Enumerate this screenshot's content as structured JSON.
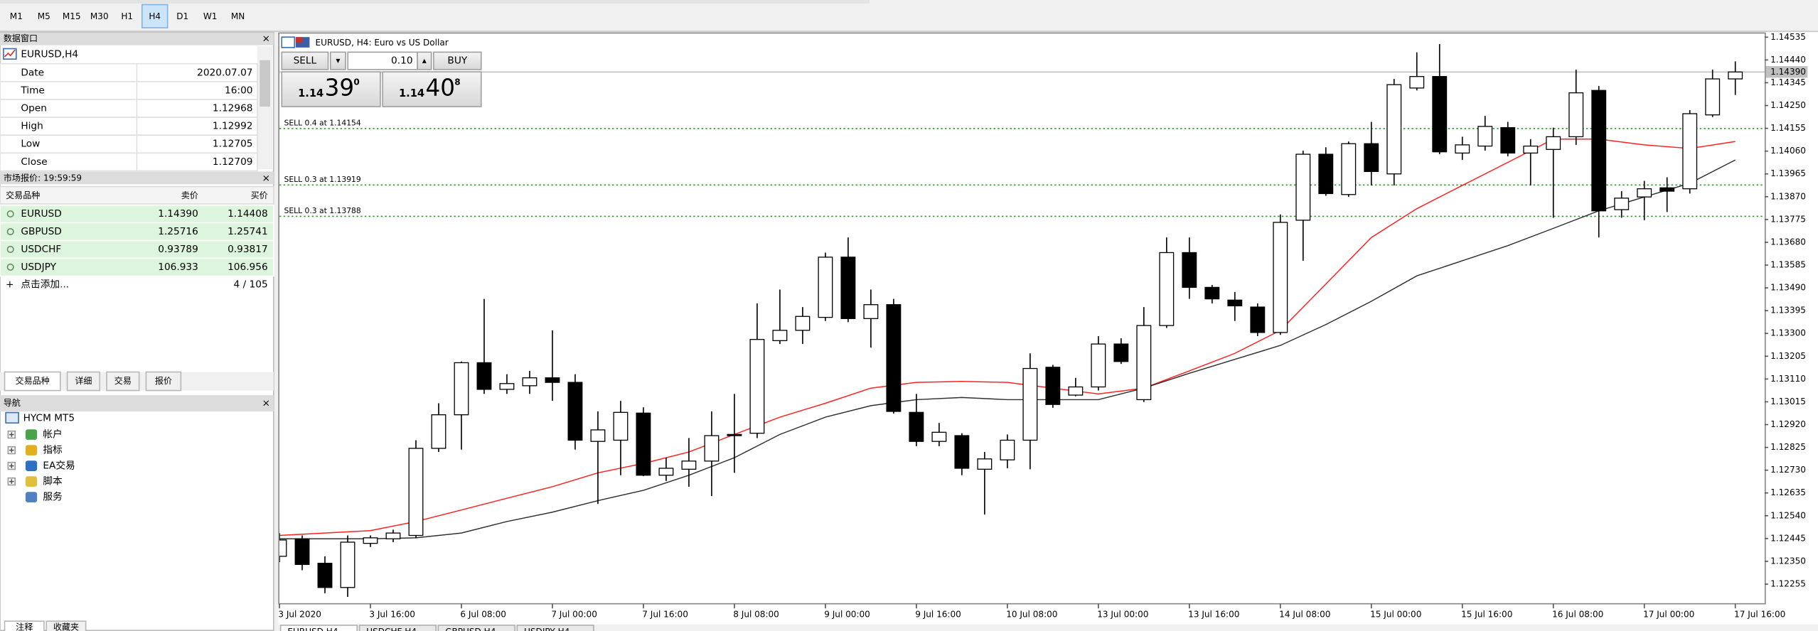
{
  "toolbar": {
    "timeframes": [
      "M1",
      "M5",
      "M15",
      "M30",
      "H1",
      "H4",
      "D1",
      "W1",
      "MN"
    ],
    "active_timeframe": "H4"
  },
  "data_window": {
    "title": "数据窗口",
    "symbol": "EURUSD,H4",
    "rows": [
      [
        "Date",
        "2020.07.07"
      ],
      [
        "Time",
        "16:00"
      ],
      [
        "Open",
        "1.12968"
      ],
      [
        "High",
        "1.12992"
      ],
      [
        "Low",
        "1.12705"
      ],
      [
        "Close",
        "1.12709"
      ]
    ]
  },
  "market_watch": {
    "title": "市场报价: 19:59:59",
    "columns": [
      "交易品种",
      "卖价",
      "买价"
    ],
    "rows": [
      [
        "EURUSD",
        "1.14390",
        "1.14408"
      ],
      [
        "GBPUSD",
        "1.25716",
        "1.25741"
      ],
      [
        "USDCHF",
        "0.93789",
        "0.93817"
      ],
      [
        "USDJPY",
        "106.933",
        "106.956"
      ]
    ],
    "add": "点击添加...",
    "count": "4 / 105",
    "tabs": [
      "交易品种",
      "详细",
      "交易",
      "报价"
    ]
  },
  "navigator": {
    "title": "导航",
    "root": "HYCM MT5",
    "items": [
      "帐户",
      "指标",
      "EA交易",
      "脚本",
      "服务"
    ]
  },
  "bottom_tabs": [
    "注释",
    "收藏夹"
  ],
  "chart_tabs": [
    "EURUSD,H4",
    "USDCHF,H4",
    "GBPUSD,H4",
    "USDJPY,H4"
  ],
  "chart_data": {
    "type": "candlestick",
    "title": "EURUSD, H4:  Euro vs US Dollar",
    "one_click": {
      "sell": "SELL",
      "buy": "BUY",
      "volume": "0.10",
      "bid": [
        "1.14",
        "39",
        "0"
      ],
      "ask": [
        "1.14",
        "40",
        "8"
      ]
    },
    "categories": [
      "3 Jul 2020",
      null,
      null,
      null,
      "3 Jul 16:00",
      null,
      null,
      null,
      "6 Jul 08:00",
      null,
      null,
      null,
      "7 Jul 00:00",
      null,
      null,
      null,
      "7 Jul 16:00",
      null,
      null,
      null,
      "8 Jul 08:00",
      null,
      null,
      null,
      "9 Jul 00:00",
      null,
      null,
      null,
      "9 Jul 16:00",
      null,
      null,
      null,
      "10 Jul 08:00",
      null,
      null,
      null,
      "13 Jul 00:00",
      null,
      null,
      null,
      "13 Jul 16:00",
      null,
      null,
      null,
      "14 Jul 08:00",
      null,
      null,
      null,
      "15 Jul 00:00",
      null,
      null,
      null,
      "15 Jul 16:00",
      null,
      null,
      null,
      "16 Jul 08:00",
      null,
      null,
      null,
      "17 Jul 00:00",
      null,
      null,
      null,
      "17 Jul 16:00"
    ],
    "open": [
      1.12371,
      1.12444,
      1.12342,
      1.12241,
      1.12425,
      1.12444,
      1.12458,
      1.12821,
      1.12961,
      1.13178,
      1.13067,
      1.13082,
      1.13115,
      1.13096,
      1.1285,
      1.12855,
      1.12968,
      1.12709,
      1.12734,
      1.12768,
      1.12879,
      1.12884,
      1.1327,
      1.13313,
      1.13367,
      1.13618,
      1.13362,
      1.1342,
      1.12971,
      1.1285,
      1.12874,
      1.12734,
      1.12773,
      1.12855,
      1.13159,
      1.13043,
      1.13077,
      1.13256,
      1.13024,
      1.13333,
      1.13637,
      1.13492,
      1.13439,
      1.1341,
      1.13304,
      1.13772,
      1.14047,
      1.13879,
      1.14091,
      1.13965,
      1.14323,
      1.14371,
      1.14052,
      1.14081,
      1.14158,
      1.14052,
      1.14067,
      1.1412,
      1.14313,
      1.13816,
      1.13869,
      1.13907,
      1.13903,
      1.14211,
      1.14361
    ],
    "high": [
      1.12468,
      1.12458,
      1.12371,
      1.12458,
      1.12458,
      1.12482,
      1.12855,
      1.13009,
      1.13183,
      1.13444,
      1.1313,
      1.13144,
      1.13313,
      1.1313,
      1.12975,
      1.13019,
      1.12992,
      1.12782,
      1.12864,
      1.12975,
      1.13048,
      1.13425,
      1.13483,
      1.1341,
      1.13637,
      1.137,
      1.13483,
      1.13444,
      1.13048,
      1.12927,
      1.12884,
      1.12806,
      1.12879,
      1.13217,
      1.13169,
      1.13115,
      1.13289,
      1.1328,
      1.1341,
      1.137,
      1.137,
      1.13502,
      1.13473,
      1.13425,
      1.13796,
      1.14062,
      1.14076,
      1.141,
      1.14182,
      1.14361,
      1.14472,
      1.14506,
      1.1412,
      1.14207,
      1.14182,
      1.1411,
      1.14158,
      1.144,
      1.14332,
      1.13893,
      1.13936,
      1.13951,
      1.14231,
      1.144,
      1.14434
    ],
    "low": [
      1.12347,
      1.12313,
      1.12217,
      1.12202,
      1.1241,
      1.1243,
      1.12448,
      1.12806,
      1.12816,
      1.13048,
      1.13048,
      1.13048,
      1.13019,
      1.12816,
      1.12589,
      1.12709,
      1.12705,
      1.12685,
      1.12661,
      1.12622,
      1.12719,
      1.12864,
      1.13256,
      1.13256,
      1.13352,
      1.13347,
      1.13241,
      1.12966,
      1.1283,
      1.1283,
      1.12709,
      1.12545,
      1.12738,
      1.12734,
      1.1299,
      1.13038,
      1.13062,
      1.13173,
      1.13014,
      1.13323,
      1.13444,
      1.13425,
      1.13352,
      1.13289,
      1.13294,
      1.13603,
      1.13874,
      1.13869,
      1.13917,
      1.13917,
      1.14313,
      1.14047,
      1.14023,
      1.14062,
      1.14038,
      1.13917,
      1.13782,
      1.14086,
      1.137,
      1.13782,
      1.13772,
      1.13806,
      1.13883,
      1.14202,
      1.14294
    ],
    "close": [
      1.12439,
      1.12337,
      1.12241,
      1.1243,
      1.12448,
      1.12468,
      1.12821,
      1.12961,
      1.13178,
      1.13067,
      1.13091,
      1.13115,
      1.13096,
      1.12855,
      1.12898,
      1.12971,
      1.12709,
      1.12738,
      1.12768,
      1.12874,
      1.12874,
      1.13275,
      1.13313,
      1.13371,
      1.13618,
      1.13362,
      1.1342,
      1.12975,
      1.1285,
      1.12888,
      1.12738,
      1.12777,
      1.12855,
      1.13154,
      1.13004,
      1.13077,
      1.13256,
      1.13183,
      1.13333,
      1.13637,
      1.13492,
      1.13444,
      1.13415,
      1.13304,
      1.13763,
      1.14047,
      1.13883,
      1.14091,
      1.13975,
      1.14337,
      1.14371,
      1.14057,
      1.14086,
      1.14163,
      1.14052,
      1.14081,
      1.1412,
      1.14303,
      1.13811,
      1.13864,
      1.13903,
      1.13893,
      1.14216,
      1.14361,
      1.1439
    ],
    "up_color": "#ffffff",
    "down_color": "#000000",
    "wick_color": "#000000",
    "moving_averages": [
      {
        "color": "#ff2020",
        "x": [
          0,
          2,
          4,
          6,
          8,
          10,
          12,
          14,
          16,
          18,
          20,
          22,
          24,
          26,
          28,
          30,
          32,
          34,
          36,
          38,
          40,
          42,
          44,
          46,
          48,
          50,
          52,
          54,
          56,
          58,
          60,
          62,
          64
        ],
        "values": [
          1.12458,
          1.12468,
          1.12478,
          1.12516,
          1.12564,
          1.12613,
          1.12661,
          1.12719,
          1.12758,
          1.12806,
          1.12879,
          1.12951,
          1.13009,
          1.13072,
          1.13096,
          1.131,
          1.13096,
          1.13072,
          1.13048,
          1.13072,
          1.13144,
          1.13217,
          1.13313,
          1.13506,
          1.137,
          1.1382,
          1.13917,
          1.14013,
          1.1411,
          1.1411,
          1.14086,
          1.14071,
          1.141
        ]
      },
      {
        "color": "#303030",
        "x": [
          0,
          2,
          4,
          6,
          8,
          10,
          12,
          14,
          16,
          18,
          20,
          22,
          24,
          26,
          28,
          30,
          32,
          34,
          36,
          38,
          40,
          42,
          44,
          46,
          48,
          50,
          52,
          54,
          56,
          58,
          60,
          62,
          64
        ],
        "values": [
          1.12444,
          1.12444,
          1.12444,
          1.12448,
          1.12468,
          1.12516,
          1.12555,
          1.12603,
          1.12646,
          1.12709,
          1.12782,
          1.12879,
          1.12951,
          1.12999,
          1.13024,
          1.13033,
          1.13024,
          1.13024,
          1.13024,
          1.13072,
          1.13134,
          1.13192,
          1.1325,
          1.13337,
          1.13434,
          1.1354,
          1.13603,
          1.13666,
          1.13738,
          1.13811,
          1.13869,
          1.13926,
          1.14023
        ]
      }
    ],
    "orders": [
      {
        "label": "SELL 0.4 at 1.14154",
        "price": 1.14154
      },
      {
        "label": "SELL 0.3 at 1.13919",
        "price": 1.13919
      },
      {
        "label": "SELL 0.3 at 1.13788",
        "price": 1.13788
      }
    ],
    "order_color": "#2e9b2e",
    "current_price": {
      "value": 1.1439,
      "label": "1.14390"
    },
    "ylim": [
      1.12178,
      1.14545
    ],
    "yticks": [
      1.14535,
      {
        "value": 1.1444,
        "label": "1.14440"
      },
      1.14345,
      {
        "value": 1.1425,
        "label": "1.14250"
      },
      1.14155,
      {
        "value": 1.1406,
        "label": "1.14060"
      },
      1.13965,
      {
        "value": 1.1387,
        "label": "1.13870"
      },
      1.13775,
      {
        "value": 1.1368,
        "label": "1.13680"
      },
      1.13585,
      {
        "value": 1.1349,
        "label": "1.13490"
      },
      1.13395,
      {
        "value": 1.133,
        "label": "1.13300"
      },
      1.13205,
      {
        "value": 1.1311,
        "label": "1.13110"
      },
      1.13015,
      {
        "value": 1.1292,
        "label": "1.12920"
      },
      1.12825,
      {
        "value": 1.1273,
        "label": "1.12730"
      },
      1.12635,
      {
        "value": 1.1254,
        "label": "1.12540"
      },
      1.12445,
      {
        "value": 1.1235,
        "label": "1.12350"
      },
      1.12255
    ],
    "grid": false
  }
}
